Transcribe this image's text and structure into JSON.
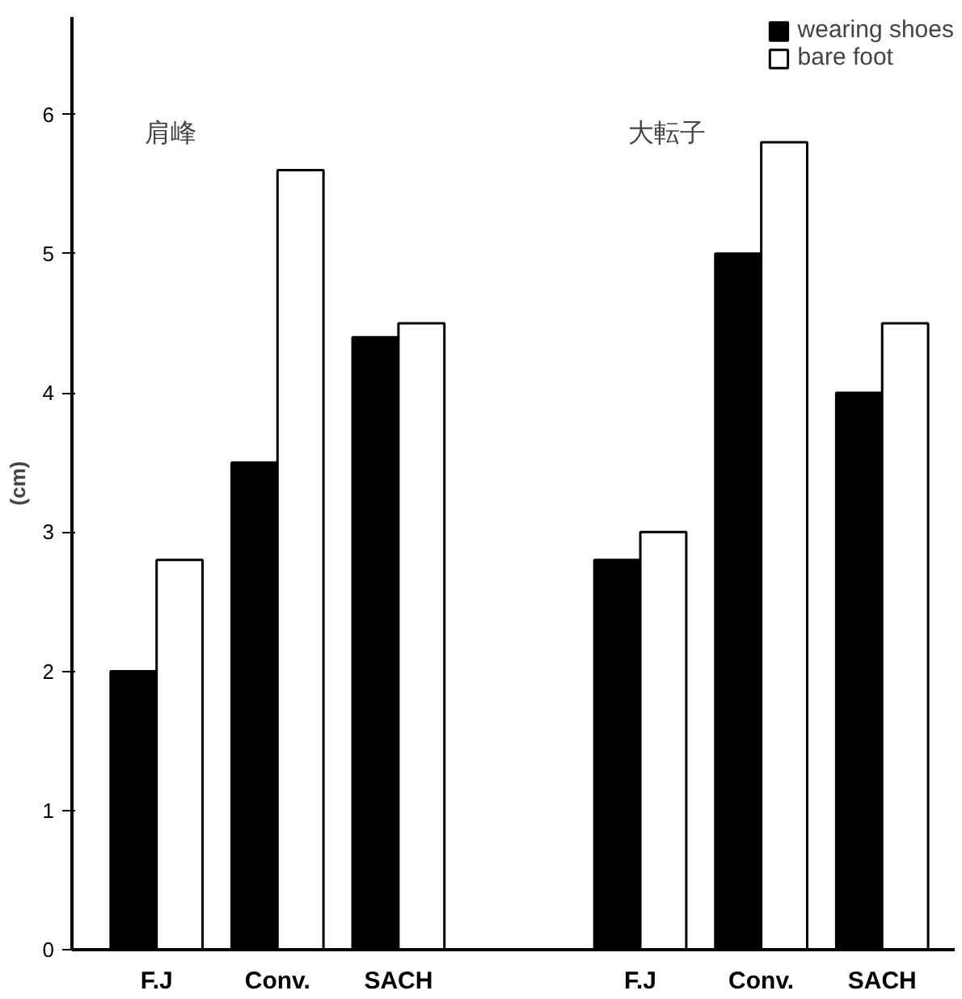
{
  "chart_data": {
    "type": "bar",
    "ylabel": "(cm)",
    "categories": [
      "F.J",
      "Conv.",
      "SACH",
      null,
      "F.J",
      "Conv.",
      "SACH"
    ],
    "series": [
      {
        "name": "wearing shoes",
        "color": "#000000",
        "values": [
          2.0,
          3.5,
          4.4,
          null,
          2.8,
          5.0,
          4.0
        ]
      },
      {
        "name": "bare foot",
        "color": "#ffffff",
        "values": [
          2.8,
          5.6,
          4.5,
          null,
          3.0,
          5.8,
          4.5
        ]
      }
    ],
    "annotations": [
      "肩峰",
      "大転子"
    ],
    "ylim": [
      0,
      6.7
    ],
    "yticks": [
      0,
      1,
      2,
      3,
      4,
      5,
      6
    ],
    "grid": false,
    "legend": "top right"
  }
}
